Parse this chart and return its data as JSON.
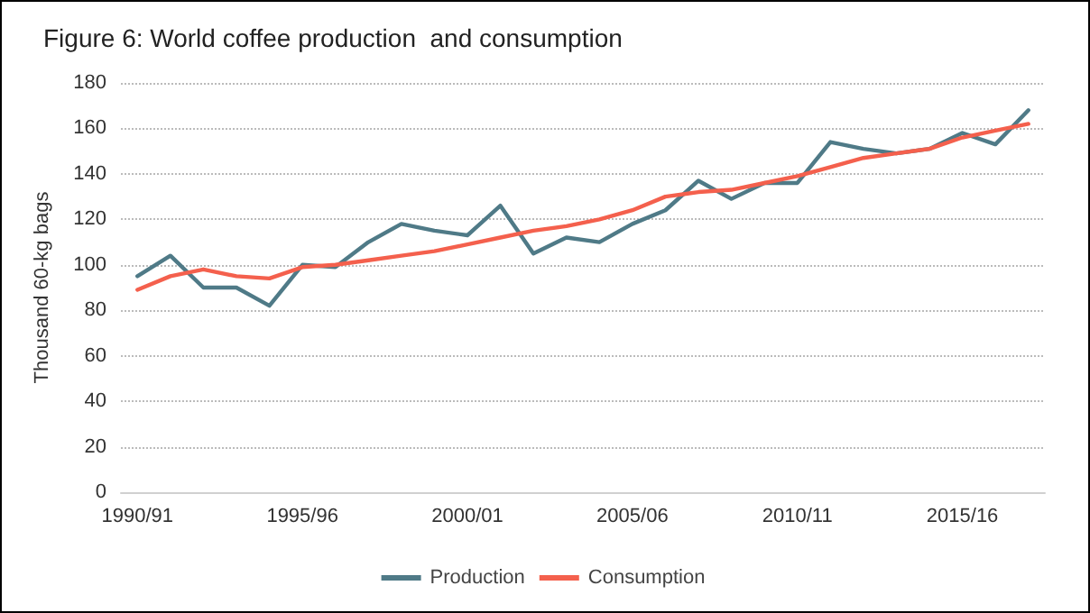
{
  "chart_data": {
    "type": "line",
    "title": "Figure 6: World coffee production  and consumption",
    "ylabel": "Thousand 60-kg bags",
    "categories": [
      "1990/91",
      null,
      null,
      null,
      null,
      "1995/96",
      null,
      null,
      null,
      null,
      "2000/01",
      null,
      null,
      null,
      null,
      "2005/06",
      null,
      null,
      null,
      null,
      "2010/11",
      null,
      null,
      null,
      null,
      "2015/16",
      null,
      null
    ],
    "series": [
      {
        "name": "Production",
        "color": "#4f7a87",
        "values": [
          95,
          104,
          90,
          90,
          82,
          100,
          99,
          110,
          118,
          115,
          113,
          126,
          105,
          112,
          110,
          118,
          124,
          137,
          129,
          136,
          136,
          154,
          151,
          149,
          151,
          158,
          153,
          168
        ]
      },
      {
        "name": "Consumption",
        "color": "#f4604d",
        "values": [
          89,
          95,
          98,
          95,
          94,
          99,
          100,
          102,
          104,
          106,
          109,
          112,
          115,
          117,
          120,
          124,
          130,
          132,
          133,
          136,
          139,
          143,
          147,
          149,
          151,
          156,
          159,
          162
        ]
      }
    ],
    "ylim": [
      0,
      180
    ],
    "yticks": [
      0,
      20,
      40,
      60,
      80,
      100,
      120,
      140,
      160,
      180
    ],
    "grid": "y",
    "legend": "bottom",
    "marker": "none",
    "line_style": "solid"
  }
}
